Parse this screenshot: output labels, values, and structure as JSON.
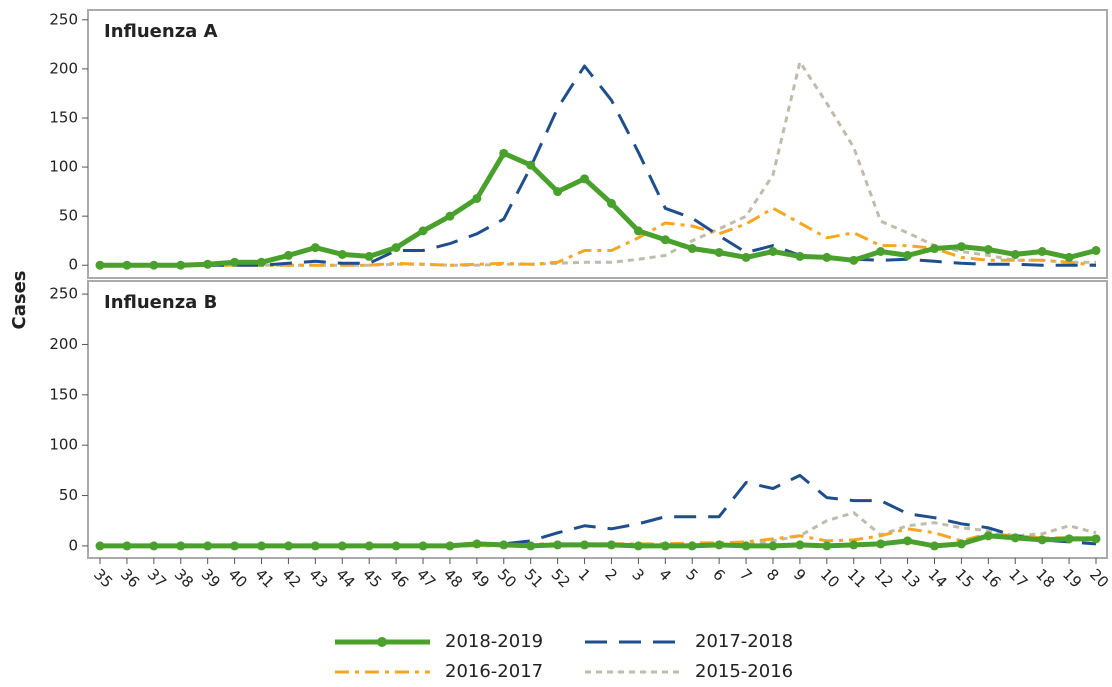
{
  "y_label": "Cases",
  "chart_data": [
    {
      "type": "line",
      "title": "Influenza A",
      "categories": [
        "35",
        "36",
        "37",
        "38",
        "39",
        "40",
        "41",
        "42",
        "43",
        "44",
        "45",
        "46",
        "47",
        "48",
        "49",
        "50",
        "51",
        "52",
        "1",
        "2",
        "3",
        "4",
        "5",
        "6",
        "7",
        "8",
        "9",
        "10",
        "11",
        "12",
        "13",
        "14",
        "15",
        "16",
        "17",
        "18",
        "19",
        "20"
      ],
      "ylim": [
        -13,
        260
      ],
      "yticks": [
        0,
        50,
        100,
        150,
        200,
        250
      ],
      "series": [
        {
          "name": "2018-2019",
          "color": "#4aa02c",
          "style": "solid",
          "marker": true,
          "values": [
            0,
            0,
            0,
            0,
            1,
            3,
            3,
            10,
            18,
            11,
            9,
            18,
            35,
            50,
            68,
            114,
            102,
            75,
            88,
            63,
            35,
            26,
            17,
            13,
            8,
            14,
            9,
            8,
            5,
            14,
            10,
            17,
            19,
            16,
            11,
            14,
            8,
            15
          ]
        },
        {
          "name": "2017-2018",
          "color": "#1f4e8c",
          "style": "dashed",
          "marker": false,
          "values": [
            0,
            0,
            0,
            0,
            0,
            0,
            0,
            2,
            4,
            2,
            2,
            15,
            15,
            22,
            32,
            47,
            100,
            160,
            203,
            168,
            115,
            58,
            48,
            30,
            13,
            20,
            10,
            8,
            6,
            5,
            6,
            4,
            2,
            1,
            1,
            0,
            0,
            0
          ]
        },
        {
          "name": "2016-2017",
          "color": "#f5a623",
          "style": "dashdot",
          "marker": false,
          "values": [
            0,
            0,
            0,
            0,
            0,
            0,
            0,
            0,
            0,
            0,
            0,
            2,
            1,
            0,
            1,
            2,
            1,
            3,
            15,
            15,
            28,
            43,
            40,
            32,
            42,
            58,
            43,
            28,
            33,
            20,
            20,
            17,
            8,
            5,
            5,
            5,
            3,
            0
          ]
        },
        {
          "name": "2015-2016",
          "color": "#c0bbaa",
          "style": "dotted",
          "marker": false,
          "values": [
            0,
            0,
            0,
            0,
            0,
            0,
            0,
            0,
            0,
            0,
            0,
            1,
            1,
            0,
            0,
            1,
            1,
            2,
            3,
            3,
            6,
            10,
            25,
            37,
            50,
            92,
            207,
            165,
            120,
            45,
            33,
            20,
            14,
            10,
            5,
            5,
            3,
            3
          ]
        }
      ]
    },
    {
      "type": "line",
      "title": "Influenza B",
      "categories": [
        "35",
        "36",
        "37",
        "38",
        "39",
        "40",
        "41",
        "42",
        "43",
        "44",
        "45",
        "46",
        "47",
        "48",
        "49",
        "50",
        "51",
        "52",
        "1",
        "2",
        "3",
        "4",
        "5",
        "6",
        "7",
        "8",
        "9",
        "10",
        "11",
        "12",
        "13",
        "14",
        "15",
        "16",
        "17",
        "18",
        "19",
        "20"
      ],
      "ylim": [
        -12,
        263
      ],
      "yticks": [
        0,
        50,
        100,
        150,
        200,
        250
      ],
      "series": [
        {
          "color": "#4aa02c",
          "style": "solid",
          "marker": true,
          "values": [
            0,
            0,
            0,
            0,
            0,
            0,
            0,
            0,
            0,
            0,
            0,
            0,
            0,
            0,
            2,
            1,
            0,
            1,
            1,
            1,
            0,
            0,
            0,
            1,
            0,
            0,
            1,
            0,
            1,
            2,
            5,
            0,
            2,
            10,
            8,
            6,
            7,
            7
          ]
        },
        {
          "color": "#1f4e8c",
          "style": "dashed",
          "marker": false,
          "values": [
            0,
            0,
            0,
            0,
            0,
            0,
            0,
            0,
            0,
            0,
            0,
            0,
            0,
            0,
            1,
            2,
            5,
            13,
            20,
            17,
            22,
            29,
            29,
            29,
            63,
            57,
            70,
            48,
            45,
            45,
            32,
            28,
            22,
            18,
            10,
            6,
            4,
            2
          ]
        },
        {
          "color": "#f5a623",
          "style": "dashdot",
          "marker": false,
          "values": [
            0,
            0,
            0,
            0,
            0,
            0,
            0,
            0,
            0,
            0,
            0,
            0,
            0,
            0,
            0,
            2,
            2,
            2,
            2,
            2,
            2,
            2,
            3,
            3,
            4,
            7,
            10,
            5,
            6,
            10,
            17,
            13,
            5,
            12,
            10,
            8,
            8,
            8
          ]
        },
        {
          "color": "#c0bbaa",
          "style": "dotted",
          "marker": false,
          "values": [
            0,
            0,
            0,
            0,
            0,
            0,
            0,
            0,
            0,
            0,
            0,
            0,
            0,
            0,
            0,
            0,
            0,
            0,
            0,
            0,
            0,
            1,
            1,
            1,
            1,
            5,
            10,
            25,
            33,
            11,
            20,
            23,
            18,
            15,
            10,
            12,
            20,
            13
          ]
        }
      ]
    }
  ]
}
